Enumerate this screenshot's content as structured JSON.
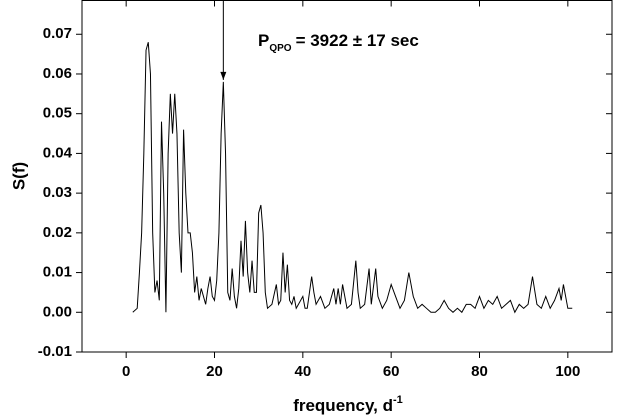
{
  "chart_data": {
    "type": "line",
    "xlabel": {
      "text": "frequency, d",
      "superscript": "-1"
    },
    "ylabel": "S(f)",
    "annotation": {
      "text": "P",
      "subscript": "QPO",
      "rest": "= 3922 ± 17 sec",
      "x": 22,
      "y": 0.058
    },
    "xlim": [
      -10,
      110
    ],
    "xticks": [
      0,
      20,
      40,
      60,
      80,
      100
    ],
    "ylim": [
      -0.01,
      0.0785
    ],
    "yticks": [
      {
        "value": -0.01,
        "label": "-0.01"
      },
      {
        "value": 0,
        "label": "0.00"
      },
      {
        "value": 0.01,
        "label": "0.01"
      },
      {
        "value": 0.02,
        "label": "0.02"
      },
      {
        "value": 0.03,
        "label": "0.03"
      },
      {
        "value": 0.04,
        "label": "0.04"
      },
      {
        "value": 0.05,
        "label": "0.05"
      },
      {
        "value": 0.06,
        "label": "0.06"
      },
      {
        "value": 0.07,
        "label": "0.07"
      }
    ],
    "color": "#000000",
    "x": [
      1.5,
      2.5,
      3,
      3.5,
      4,
      4.5,
      5,
      5.5,
      6,
      6.5,
      7,
      7.5,
      8,
      8.5,
      9,
      9.5,
      10,
      10.5,
      11,
      11.5,
      12,
      12.5,
      13,
      13.5,
      14,
      14.5,
      15,
      15.5,
      16,
      16.5,
      17,
      17.5,
      18,
      18.5,
      19,
      19.5,
      20,
      20.5,
      21,
      21.5,
      22,
      22.5,
      23,
      23.5,
      24,
      24.5,
      25,
      25.5,
      26,
      26.5,
      27,
      27.5,
      28,
      28.5,
      29,
      29.5,
      30,
      30.5,
      31,
      31.5,
      32,
      33,
      34,
      34.5,
      35,
      35.5,
      36,
      36.5,
      37,
      37.5,
      38,
      38.5,
      39,
      40,
      40.5,
      41,
      42,
      42.5,
      43,
      44,
      45,
      46,
      47,
      47.5,
      48,
      48.5,
      49,
      50,
      51,
      52,
      52.5,
      53,
      54,
      55,
      55.5,
      56.5,
      57,
      58,
      59,
      60,
      61,
      62,
      63,
      64,
      65,
      66,
      67,
      68,
      69,
      70,
      71,
      72,
      73,
      74,
      75,
      76,
      77,
      78,
      79,
      80,
      81,
      82,
      83,
      84,
      85,
      86,
      87,
      88,
      89,
      90,
      91,
      92,
      93,
      94,
      95,
      96,
      97,
      98,
      98.5,
      99,
      100,
      101
    ],
    "values": [
      0,
      0.001,
      0.01,
      0.02,
      0.04,
      0.066,
      0.068,
      0.06,
      0.02,
      0.005,
      0.008,
      0.003,
      0.048,
      0.03,
      0,
      0.04,
      0.055,
      0.045,
      0.055,
      0.045,
      0.02,
      0.01,
      0.046,
      0.03,
      0.02,
      0.02,
      0.015,
      0.005,
      0.009,
      0.003,
      0.006,
      0.004,
      0.002,
      0.006,
      0.009,
      0.004,
      0.003,
      0.008,
      0.02,
      0.045,
      0.058,
      0.04,
      0.005,
      0.003,
      0.011,
      0.004,
      0.001,
      0.006,
      0.018,
      0.009,
      0.023,
      0.01,
      0.005,
      0.013,
      0.005,
      0.005,
      0.025,
      0.027,
      0.02,
      0.005,
      0.001,
      0.002,
      0.007,
      0.002,
      0.003,
      0.015,
      0.005,
      0.012,
      0.003,
      0.002,
      0.004,
      0.001,
      0.002,
      0.004,
      0.001,
      0.001,
      0.009,
      0.005,
      0.002,
      0.004,
      0.001,
      0.002,
      0.006,
      0.002,
      0.006,
      0.002,
      0.007,
      0.001,
      0.002,
      0.013,
      0.005,
      0.001,
      0.002,
      0.011,
      0.002,
      0.011,
      0.004,
      0.001,
      0.003,
      0.007,
      0.004,
      0.001,
      0.003,
      0.01,
      0.004,
      0.001,
      0.002,
      0.001,
      0,
      0,
      0.001,
      0.003,
      0.001,
      0,
      0.001,
      0,
      0.002,
      0.002,
      0.001,
      0.004,
      0.001,
      0.003,
      0.002,
      0.004,
      0.001,
      0.002,
      0.003,
      0,
      0.002,
      0.001,
      0.002,
      0.009,
      0.002,
      0.001,
      0.004,
      0.001,
      0.003,
      0.006,
      0.003,
      0.007,
      0.001,
      0.001
    ]
  }
}
